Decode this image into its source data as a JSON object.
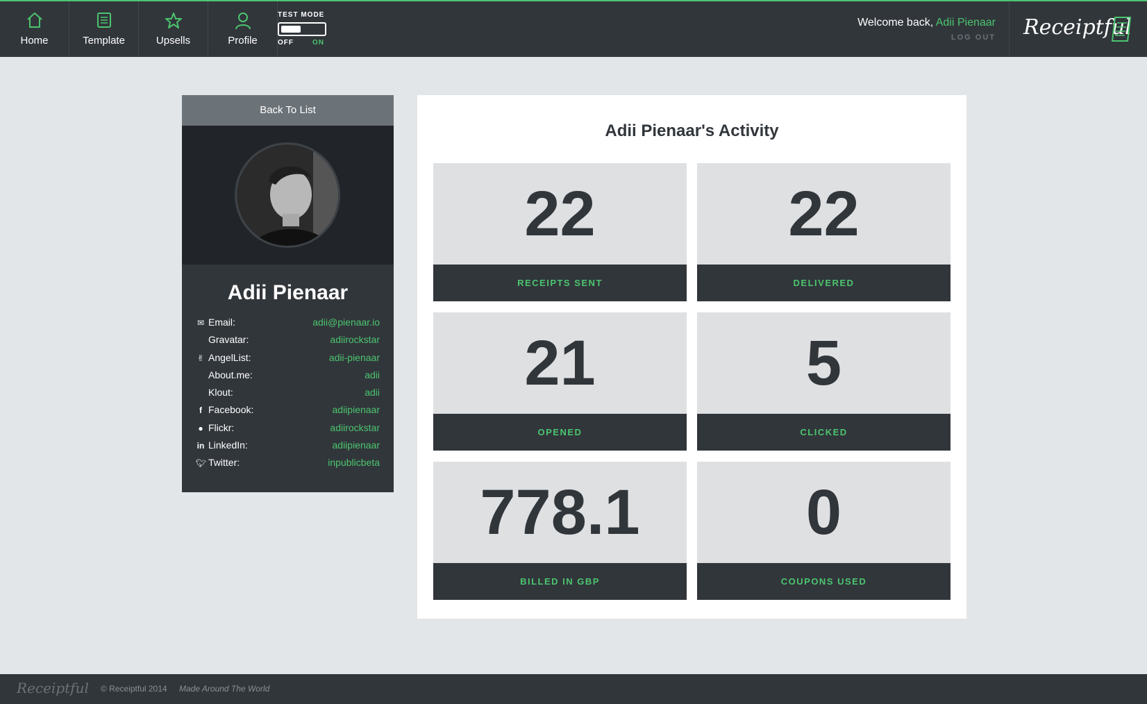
{
  "nav": {
    "items": [
      {
        "label": "Home",
        "icon": "home-icon"
      },
      {
        "label": "Template",
        "icon": "template-icon"
      },
      {
        "label": "Upsells",
        "icon": "star-icon"
      },
      {
        "label": "Profile",
        "icon": "user-icon"
      }
    ],
    "test_mode": {
      "title": "TEST MODE",
      "off_label": "OFF",
      "on_label": "ON",
      "state": "off"
    }
  },
  "header": {
    "welcome_prefix": "Welcome back,",
    "user_name": "Adii Pienaar",
    "logout_label": "LOG OUT",
    "logo_text": "Receiptful"
  },
  "profile": {
    "back_label": "Back To List",
    "name": "Adii Pienaar",
    "links": [
      {
        "label": "Email:",
        "value": "adii@pienaar.io",
        "icon": "envelope-icon"
      },
      {
        "label": "Gravatar:",
        "value": "adiirockstar",
        "icon": ""
      },
      {
        "label": "AngelList:",
        "value": "adii-pienaar",
        "icon": "angellist-icon"
      },
      {
        "label": "About.me:",
        "value": "adii",
        "icon": ""
      },
      {
        "label": "Klout:",
        "value": "adii",
        "icon": ""
      },
      {
        "label": "Facebook:",
        "value": "adiipienaar",
        "icon": "facebook-icon"
      },
      {
        "label": "Flickr:",
        "value": "adiirockstar",
        "icon": "flickr-icon"
      },
      {
        "label": "LinkedIn:",
        "value": "adiipienaar",
        "icon": "linkedin-icon"
      },
      {
        "label": "Twitter:",
        "value": "inpublicbeta",
        "icon": "twitter-icon"
      }
    ]
  },
  "activity": {
    "title": "Adii Pienaar's Activity",
    "stats": [
      {
        "value": "22",
        "label": "RECEIPTS SENT"
      },
      {
        "value": "22",
        "label": "DELIVERED"
      },
      {
        "value": "21",
        "label": "OPENED"
      },
      {
        "value": "5",
        "label": "CLICKED"
      },
      {
        "value": "778.1",
        "label": "BILLED IN GBP"
      },
      {
        "value": "0",
        "label": "COUPONS USED"
      }
    ]
  },
  "footer": {
    "logo_text": "Receiptful",
    "copyright": "© Receiptful 2014",
    "tagline": "Made Around The World"
  },
  "colors": {
    "accent": "#4cc56e",
    "dark": "#31363b",
    "background": "#e3e6e9"
  }
}
